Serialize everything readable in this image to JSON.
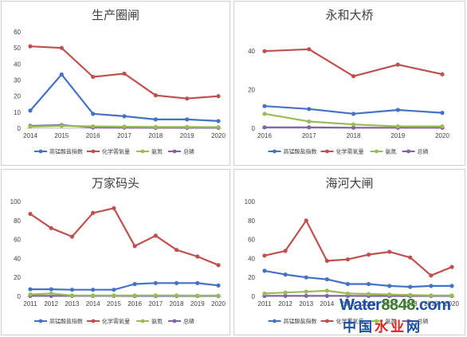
{
  "legend": [
    "高锰酸盐指数",
    "化学需氧量",
    "氨氮",
    "总磷"
  ],
  "colors": [
    "#4472c4",
    "#c0504d",
    "#9bbb59",
    "#8064a2"
  ],
  "watermark": {
    "line1_a": "Water",
    "line1_b": "8848",
    "line1_c": ".com",
    "line2_a": "中国",
    "line2_b": "水业",
    "line2_c": "网"
  },
  "chart_data": [
    {
      "type": "line",
      "title": "生产圈闸",
      "categories": [
        "2014",
        "2015",
        "2016",
        "2017",
        "2018",
        "2019",
        "2020"
      ],
      "ylim": [
        0,
        60
      ],
      "yticks": [
        0,
        10,
        20,
        30,
        40,
        50,
        60
      ],
      "grid": false,
      "legend_position": "bottom",
      "series": [
        {
          "name": "高锰酸盐指数",
          "values": [
            11,
            33.5,
            9,
            7.5,
            5.5,
            5.5,
            4.5
          ]
        },
        {
          "name": "化学需氧量",
          "values": [
            51,
            50,
            32,
            34,
            20.5,
            18.5,
            20
          ]
        },
        {
          "name": "氨氮",
          "values": [
            1,
            1.5,
            1.2,
            1,
            0.8,
            0.8,
            0.7
          ]
        },
        {
          "name": "总磷",
          "values": [
            1.5,
            2,
            0.5,
            0.4,
            0.3,
            0.3,
            0.3
          ]
        }
      ]
    },
    {
      "type": "line",
      "title": "永和大桥",
      "categories": [
        "2016",
        "2017",
        "2018",
        "2019",
        "2020"
      ],
      "ylim": [
        0,
        50
      ],
      "yticks": [
        0,
        20,
        40
      ],
      "grid": false,
      "legend_position": "bottom",
      "series": [
        {
          "name": "高锰酸盐指数",
          "values": [
            11.5,
            10,
            7.5,
            9.5,
            8
          ]
        },
        {
          "name": "化学需氧量",
          "values": [
            40,
            41,
            27,
            33,
            28
          ]
        },
        {
          "name": "氨氮",
          "values": [
            7.5,
            3.5,
            2,
            1,
            1
          ]
        },
        {
          "name": "总磷",
          "values": [
            0.5,
            0.5,
            0.3,
            0.3,
            0.3
          ]
        }
      ]
    },
    {
      "type": "line",
      "title": "万家码头",
      "categories": [
        "2011",
        "2012",
        "2013",
        "2014",
        "2015",
        "2016",
        "2017",
        "2018",
        "2019",
        "2020"
      ],
      "ylim": [
        0,
        100
      ],
      "yticks": [
        0,
        20,
        40,
        60,
        80,
        100
      ],
      "grid": false,
      "legend_position": "bottom",
      "series": [
        {
          "name": "高锰酸盐指数",
          "values": [
            7.5,
            7.5,
            7,
            7,
            7,
            13,
            14,
            14,
            14,
            11.5
          ]
        },
        {
          "name": "化学需氧量",
          "values": [
            87,
            72,
            63,
            88,
            93,
            53,
            64,
            49,
            42,
            33
          ]
        },
        {
          "name": "氨氮",
          "values": [
            2,
            3,
            1,
            1,
            1,
            1,
            1,
            1,
            0.8,
            0.8
          ]
        },
        {
          "name": "总磷",
          "values": [
            0.5,
            0.5,
            0.5,
            0.5,
            0.5,
            0.4,
            0.4,
            0.4,
            0.4,
            0.4
          ]
        }
      ]
    },
    {
      "type": "line",
      "title": "海河大闸",
      "categories": [
        "2011",
        "2012",
        "2013",
        "2014",
        "2015",
        "2016",
        "2017",
        "2018",
        "2019",
        "2020"
      ],
      "ylim": [
        0,
        100
      ],
      "yticks": [
        0,
        20,
        40,
        60,
        80,
        100
      ],
      "grid": false,
      "legend_position": "bottom",
      "series": [
        {
          "name": "高锰酸盐指数",
          "values": [
            27,
            23,
            20,
            18,
            13,
            13,
            11,
            10,
            11,
            11
          ]
        },
        {
          "name": "化学需氧量",
          "values": [
            43,
            48,
            80,
            37.5,
            39,
            44,
            47,
            41,
            22,
            31
          ]
        },
        {
          "name": "氨氮",
          "values": [
            3,
            4,
            5,
            6,
            3,
            2.5,
            2,
            1.5,
            1,
            1
          ]
        },
        {
          "name": "总磷",
          "values": [
            0.5,
            0.5,
            0.5,
            0.5,
            0.5,
            0.4,
            0.4,
            0.4,
            0.4,
            0.4
          ]
        }
      ]
    }
  ]
}
